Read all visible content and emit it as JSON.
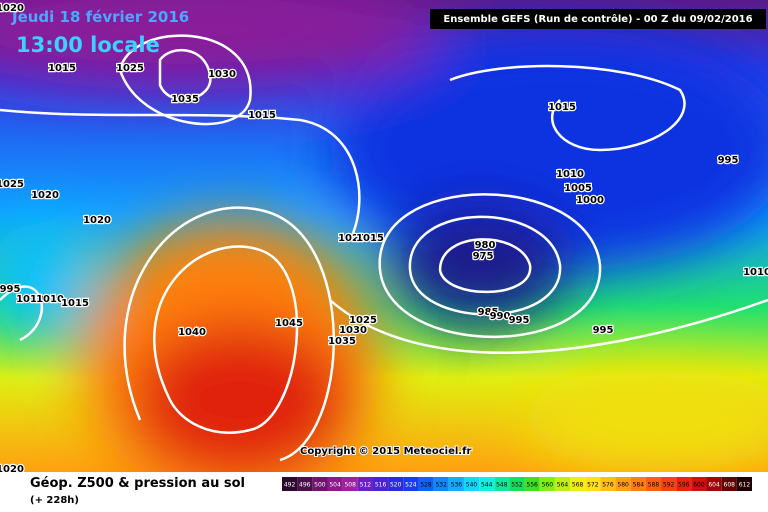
{
  "header": {
    "date": "Jeudi 18 février 2016",
    "time": "13:00 locale",
    "run": "Ensemble GEFS  (Run de contrôle)  - 00 Z du 09/02/2016"
  },
  "isobar_labels": [
    1020,
    1015,
    1025,
    1030,
    1035,
    1015,
    1015,
    995,
    1010,
    1005,
    1000,
    1025,
    1020,
    1020,
    1020,
    1015,
    980,
    975,
    995,
    1010,
    1010,
    1015,
    1040,
    1045,
    1025,
    1030,
    1035,
    985,
    990,
    995,
    995,
    1010,
    1020
  ],
  "copyright": "Copyright © 2015 Meteociel.fr",
  "legend": {
    "title": "Géop. Z500 & pression au sol",
    "lead": "(+ 228h)",
    "scale": [
      492,
      496,
      500,
      504,
      508,
      512,
      516,
      520,
      524,
      528,
      532,
      536,
      540,
      544,
      548,
      552,
      556,
      560,
      564,
      568,
      572,
      576,
      580,
      584,
      588,
      592,
      596,
      600,
      604,
      608,
      612
    ],
    "colors": [
      "#2a0a2a",
      "#4b0f4b",
      "#6e146e",
      "#8c1a8c",
      "#a020a0",
      "#6a1fc8",
      "#4b22d8",
      "#2a2ae0",
      "#1a3cf0",
      "#1060ff",
      "#1088ff",
      "#10b0ff",
      "#10d8ff",
      "#10f0e0",
      "#10e8a0",
      "#10e060",
      "#40e020",
      "#80f010",
      "#c0f010",
      "#f0f010",
      "#ffe010",
      "#ffc010",
      "#ffa010",
      "#ff8010",
      "#ff6010",
      "#ff4010",
      "#f02010",
      "#d01010",
      "#a00808",
      "#600404",
      "#200000"
    ]
  }
}
